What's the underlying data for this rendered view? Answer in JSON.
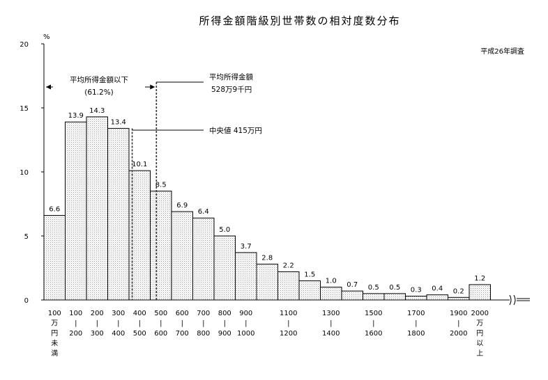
{
  "chart_data": {
    "type": "bar",
    "title": "所得金額階級別世帯数の相対度数分布",
    "note": "平成26年調査",
    "ylabel": "%",
    "ylim": [
      0,
      20
    ],
    "yticks": [
      "0",
      "5",
      "10",
      "15",
      "20"
    ],
    "grid": false,
    "legend": "none",
    "series": [
      {
        "values": [
          6.6,
          13.9,
          14.3,
          13.4,
          10.1,
          8.5,
          6.9,
          6.4,
          5.0,
          3.7,
          2.8,
          2.2,
          1.5,
          1.0,
          0.7,
          0.5,
          0.5,
          0.3,
          0.4,
          0.2,
          1.2
        ],
        "value_labels": [
          "6.6",
          "13.9",
          "14.3",
          "13.4",
          "10.1",
          "8.5",
          "6.9",
          "6.4",
          "5.0",
          "3.7",
          "2.8",
          "2.2",
          "1.5",
          "1.0",
          "0.7",
          "0.5",
          "0.5",
          "0.3",
          "0.4",
          "0.2",
          "1.2"
        ]
      }
    ],
    "categories": [
      [
        "100",
        "万",
        "円",
        "未",
        "満"
      ],
      [
        "100",
        "|",
        "200"
      ],
      [
        "200",
        "|",
        "300"
      ],
      [
        "300",
        "|",
        "400"
      ],
      [
        "400",
        "|",
        "500"
      ],
      [
        "500",
        "|",
        "600"
      ],
      [
        "600",
        "|",
        "700"
      ],
      [
        "700",
        "|",
        "800"
      ],
      [
        "800",
        "|",
        "900"
      ],
      [
        "900",
        "|",
        "1000"
      ],
      [
        "",
        "",
        ""
      ],
      [
        "1100",
        "|",
        "1200"
      ],
      [
        "",
        "",
        ""
      ],
      [
        "1300",
        "|",
        "1400"
      ],
      [
        "",
        "",
        ""
      ],
      [
        "1500",
        "|",
        "1600"
      ],
      [
        "",
        "",
        ""
      ],
      [
        "1700",
        "|",
        "1800"
      ],
      [
        "",
        "",
        ""
      ],
      [
        "1900",
        "|",
        "2000"
      ],
      [
        "2000",
        "万",
        "円",
        "以",
        "上"
      ]
    ],
    "annotations": {
      "below_mean_label": "平均所得金額以下",
      "below_mean_value": "(61.2%)",
      "mean_label": "平均所得金額",
      "mean_value": "528万9千円",
      "median_label": "中央値 415万円",
      "mean": 528.9,
      "median": 415
    }
  }
}
